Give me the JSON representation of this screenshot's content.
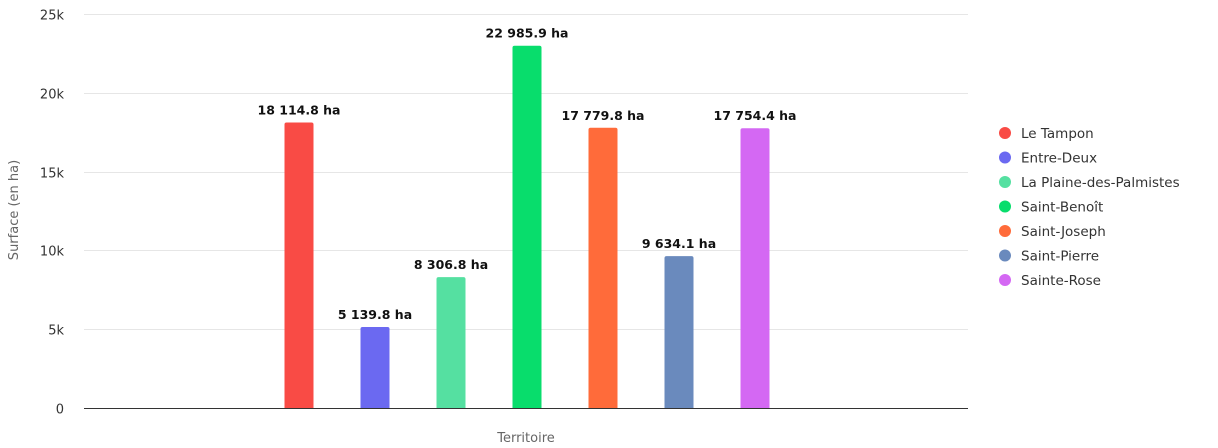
{
  "chart_data": {
    "type": "bar",
    "title": "",
    "xlabel": "Territoire",
    "ylabel": "Surface (en ha)",
    "ylim": [
      0,
      25000
    ],
    "y_ticks": [
      {
        "value": 0,
        "label": "0"
      },
      {
        "value": 5000,
        "label": "5k"
      },
      {
        "value": 10000,
        "label": "10k"
      },
      {
        "value": 15000,
        "label": "15k"
      },
      {
        "value": 20000,
        "label": "20k"
      },
      {
        "value": 25000,
        "label": "25k"
      }
    ],
    "grid": true,
    "legend_position": "right",
    "series": [
      {
        "name": "Le Tampon",
        "value": 18114.8,
        "label": "18 114.8 ha",
        "color": "#f94b45"
      },
      {
        "name": "Entre-Deux",
        "value": 5139.8,
        "label": "5 139.8 ha",
        "color": "#6b69f1"
      },
      {
        "name": "La Plaine-des-Palmistes",
        "value": 8306.8,
        "label": "8 306.8 ha",
        "color": "#55e0a1"
      },
      {
        "name": "Saint-Benoît",
        "value": 22985.9,
        "label": "22 985.9 ha",
        "color": "#08dd6c"
      },
      {
        "name": "Saint-Joseph",
        "value": 17779.8,
        "label": "17 779.8 ha",
        "color": "#ff6b3a"
      },
      {
        "name": "Saint-Pierre",
        "value": 9634.1,
        "label": "9 634.1 ha",
        "color": "#6a8abd"
      },
      {
        "name": "Sainte-Rose",
        "value": 17754.4,
        "label": "17 754.4 ha",
        "color": "#d468f3"
      }
    ]
  }
}
